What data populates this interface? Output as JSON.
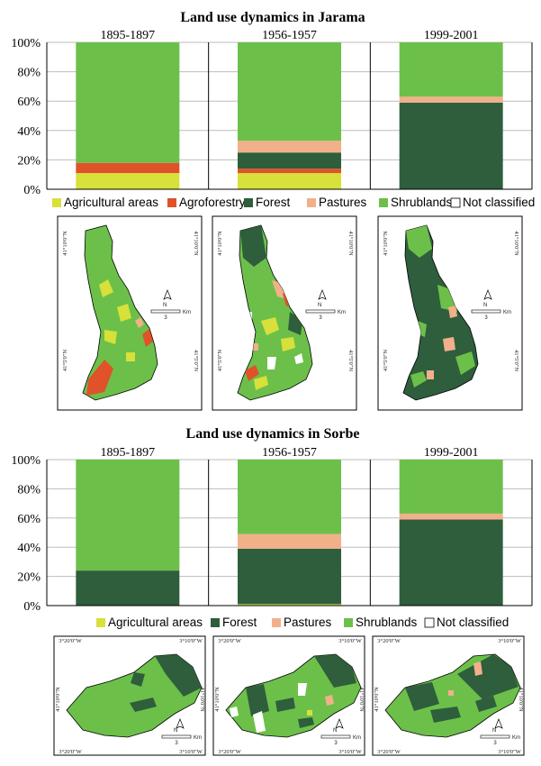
{
  "colors": {
    "agricultural": "#d8e03a",
    "agroforestry": "#e0522a",
    "forest": "#2e5e3c",
    "pastures": "#f2b08a",
    "shrublands": "#6cc04a",
    "not_classified": "#ffffff"
  },
  "chart_data": [
    {
      "type": "bar",
      "stacked": true,
      "title": "Land use dynamics in Jarama",
      "categories": [
        "1895-1897",
        "1956-1957",
        "1999-2001"
      ],
      "ylim": [
        0,
        100
      ],
      "yticks": [
        "0%",
        "20%",
        "40%",
        "60%",
        "80%",
        "100%"
      ],
      "series": [
        {
          "name": "Agricultural areas",
          "color_key": "agricultural",
          "values": [
            11,
            11,
            0
          ]
        },
        {
          "name": "Agroforestry",
          "color_key": "agroforestry",
          "values": [
            7,
            3,
            0
          ]
        },
        {
          "name": "Forest",
          "color_key": "forest",
          "values": [
            0,
            11,
            59
          ]
        },
        {
          "name": "Pastures",
          "color_key": "pastures",
          "values": [
            0,
            8,
            4
          ]
        },
        {
          "name": "Shrublands",
          "color_key": "shrublands",
          "values": [
            82,
            67,
            37
          ]
        },
        {
          "name": "Not classified",
          "color_key": "not_classified",
          "values": [
            0,
            0,
            0
          ]
        }
      ],
      "legend": [
        "Agricultural areas",
        "Agroforestry",
        "Forest",
        "Pastures",
        "Shrublands",
        "Not classified"
      ],
      "grid": true
    },
    {
      "type": "bar",
      "stacked": true,
      "title": "Land use dynamics in Sorbe",
      "categories": [
        "1895-1897",
        "1956-1957",
        "1999-2001"
      ],
      "ylim": [
        0,
        100
      ],
      "yticks": [
        "0%",
        "20%",
        "40%",
        "60%",
        "80%",
        "100%"
      ],
      "series": [
        {
          "name": "Agricultural areas",
          "color_key": "agricultural",
          "values": [
            0,
            1,
            0
          ]
        },
        {
          "name": "Forest",
          "color_key": "forest",
          "values": [
            24,
            38,
            59
          ]
        },
        {
          "name": "Pastures",
          "color_key": "pastures",
          "values": [
            0,
            10,
            4
          ]
        },
        {
          "name": "Shrublands",
          "color_key": "shrublands",
          "values": [
            76,
            51,
            37
          ]
        },
        {
          "name": "Not classified",
          "color_key": "not_classified",
          "values": [
            0,
            0,
            0
          ]
        }
      ],
      "legend": [
        "Agricultural areas",
        "Forest",
        "Pastures",
        "Shrublands",
        "Not classified"
      ],
      "grid": true
    }
  ],
  "maps": {
    "jarama": {
      "lat_top": "41°10'0\"N",
      "lat_bottom": "41°5'0\"N",
      "scale_label": "3",
      "scale_unit": "Km",
      "north": "N"
    },
    "sorbe": {
      "lon_left": "3°20'0\"W",
      "lon_right": "3°10'0\"W",
      "lat": "41°10'0\"N",
      "scale_label": "3",
      "scale_unit": "Km",
      "north": "N"
    }
  }
}
